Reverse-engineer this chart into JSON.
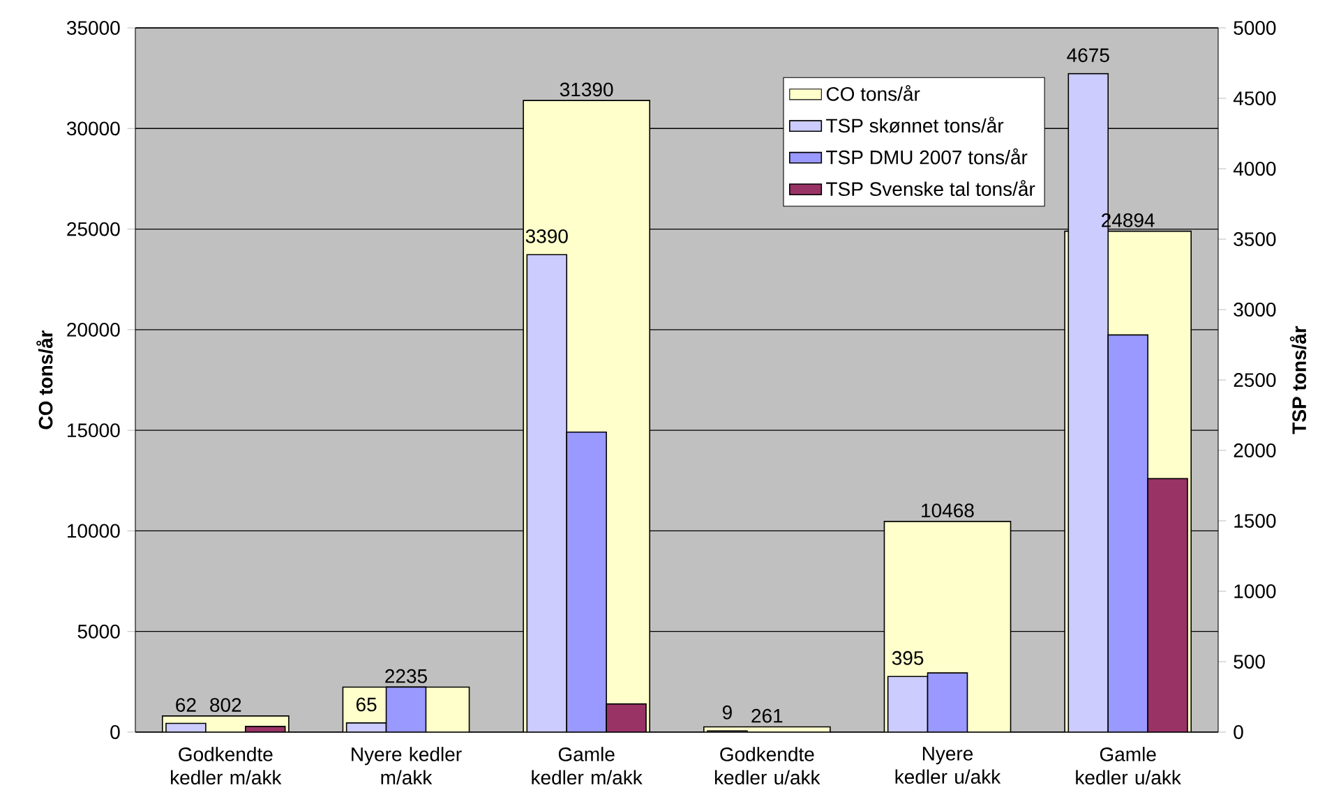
{
  "chart_data": {
    "type": "bar",
    "ylabel": "CO tons/år",
    "y2label": "TSP tons/år",
    "categories": [
      "Godkendte kedler m/akk",
      "Nyere kedler m/akk",
      "Gamle kedler m/akk",
      "Godkendte kedler u/akk",
      "Nyere kedler u/akk",
      "Gamle kedler u/akk"
    ],
    "series": [
      {
        "name": "CO tons/år",
        "color": "#ffffcc",
        "values": [
          802,
          2235,
          31390,
          261,
          10468,
          24894
        ],
        "value_labels": [
          "802",
          "2235",
          "31390",
          "261",
          "10468",
          "24894"
        ]
      },
      {
        "name": "TSP skønnet tons/år",
        "color": "#ccccff",
        "axis": "y2",
        "values": [
          62,
          65,
          3390,
          9,
          395,
          4675
        ],
        "value_labels": [
          "62",
          "65",
          "3390",
          "9",
          "395",
          "4675"
        ]
      },
      {
        "name": "TSP DMU 2007 tons/år",
        "color": "#9999ff",
        "axis": "y2",
        "values": [
          null,
          320,
          2130,
          null,
          420,
          2820
        ]
      },
      {
        "name": "TSP Svenske tal tons/år",
        "color": "#993366",
        "axis": "y2",
        "values": [
          40,
          null,
          200,
          null,
          null,
          1800
        ]
      }
    ],
    "ylim": [
      0,
      35000
    ],
    "yticks": [
      0,
      5000,
      10000,
      15000,
      20000,
      25000,
      30000,
      35000
    ],
    "y2lim": [
      0,
      5000
    ],
    "y2ticks": [
      0,
      500,
      1000,
      1500,
      2000,
      2500,
      3000,
      3500,
      4000,
      4500,
      5000
    ],
    "grid": "y",
    "legend": "top right"
  }
}
